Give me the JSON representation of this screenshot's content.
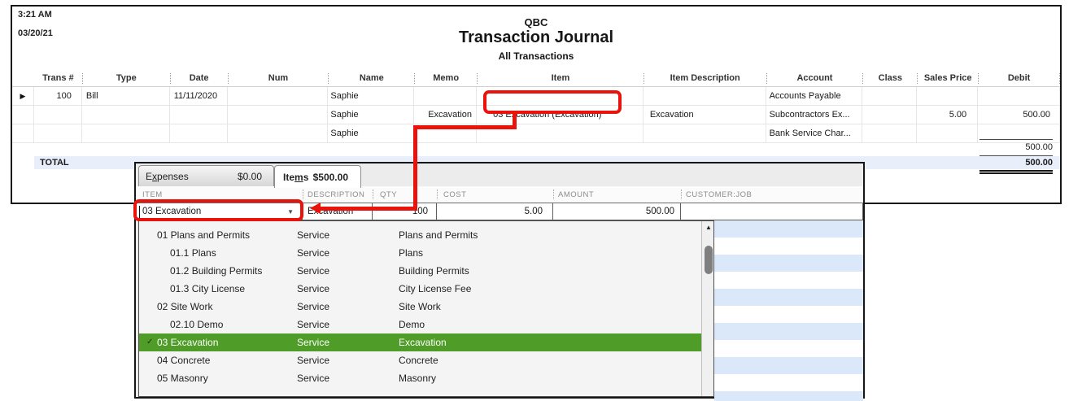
{
  "report": {
    "time": "3:21 AM",
    "date": "03/20/21",
    "company": "QBC",
    "title": "Transaction Journal",
    "subtitle": "All Transactions",
    "columns": [
      "",
      "Trans #",
      "Type",
      "Date",
      "Num",
      "Name",
      "Memo",
      "Item",
      "Item Description",
      "Account",
      "Class",
      "Sales Price",
      "Debit"
    ],
    "rows": [
      {
        "marker": "▶",
        "trans": "100",
        "type": "Bill",
        "date": "11/11/2020",
        "num": "",
        "name": "Saphie",
        "memo": "",
        "item": "",
        "item_description": "",
        "account": "Accounts Payable",
        "class": "",
        "sales_price": "",
        "debit": ""
      },
      {
        "marker": "",
        "trans": "",
        "type": "",
        "date": "",
        "num": "",
        "name": "Saphie",
        "memo": "Excavation",
        "item": "03 Excavation (Excavation)",
        "item_description": "Excavation",
        "account": "Subcontractors Ex...",
        "class": "",
        "sales_price": "5.00",
        "debit": "500.00"
      },
      {
        "marker": "",
        "trans": "",
        "type": "",
        "date": "",
        "num": "",
        "name": "Saphie",
        "memo": "",
        "item": "",
        "item_description": "",
        "account": "Bank Service Char...",
        "class": "",
        "sales_price": "",
        "debit": ""
      }
    ],
    "subtotal_debit": "500.00",
    "total_label": "TOTAL",
    "total_debit": "500.00"
  },
  "panel": {
    "tabs": {
      "expenses": {
        "pre": "E",
        "u": "x",
        "post": "penses",
        "amount": "$0.00"
      },
      "items": {
        "pre": "Ite",
        "u": "m",
        "post": "s",
        "amount": "$500.00"
      }
    },
    "grid_columns": [
      "ITEM",
      "DESCRIPTION",
      "QTY",
      "COST",
      "AMOUNT",
      "CUSTOMER:JOB"
    ],
    "item_row": {
      "item": "03 Excavation",
      "description": "Excavation",
      "qty": "100",
      "cost": "5.00",
      "amount": "500.00",
      "customer_job": ""
    },
    "dropdown_items": [
      {
        "name": "01 Plans and Permits",
        "type": "Service",
        "description": "Plans and Permits",
        "level": 0,
        "selected": false
      },
      {
        "name": "01.1 Plans",
        "type": "Service",
        "description": "Plans",
        "level": 1,
        "selected": false
      },
      {
        "name": "01.2 Building Permits",
        "type": "Service",
        "description": "Building Permits",
        "level": 1,
        "selected": false
      },
      {
        "name": "01.3 City License",
        "type": "Service",
        "description": "City License Fee",
        "level": 1,
        "selected": false
      },
      {
        "name": "02 Site Work",
        "type": "Service",
        "description": "Site Work",
        "level": 0,
        "selected": false
      },
      {
        "name": "02.10 Demo",
        "type": "Service",
        "description": "Demo",
        "level": 1,
        "selected": false
      },
      {
        "name": "03 Excavation",
        "type": "Service",
        "description": "Excavation",
        "level": 0,
        "selected": true
      },
      {
        "name": "04 Concrete",
        "type": "Service",
        "description": "Concrete",
        "level": 0,
        "selected": false
      },
      {
        "name": "05 Masonry",
        "type": "Service",
        "description": "Masonry",
        "level": 0,
        "selected": false
      }
    ]
  },
  "icons": {
    "row_marker": "▶",
    "dropdown_arrow": "▼",
    "scroll_up_arrow": "▲",
    "checkmark": "✓"
  },
  "colors": {
    "highlight_red": "#e9130c",
    "selected_green": "#4f9d28",
    "stripe_blue": "#dbe8fa",
    "total_row_bg": "#e8eefa"
  }
}
